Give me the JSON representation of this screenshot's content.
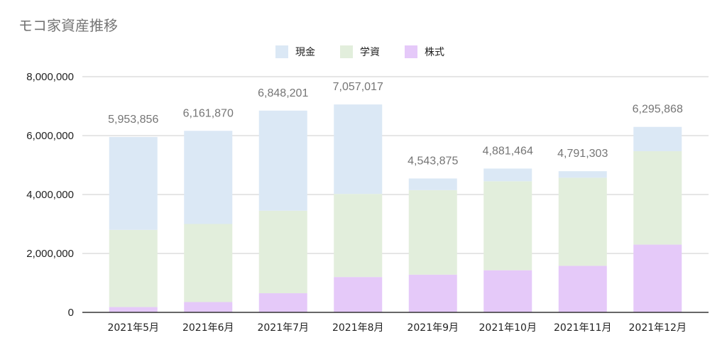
{
  "title": "モコ家資産推移",
  "chart_data": {
    "type": "bar",
    "stacked": true,
    "title": "モコ家資産推移",
    "xlabel": "",
    "ylabel": "",
    "ylim": [
      0,
      8000000
    ],
    "yticks": [
      0,
      2000000,
      4000000,
      6000000,
      8000000
    ],
    "ytick_labels": [
      "0",
      "2,000,000",
      "4,000,000",
      "6,000,000",
      "8,000,000"
    ],
    "grid": true,
    "legend_position": "top",
    "categories": [
      "2021年5月",
      "2021年6月",
      "2021年7月",
      "2021年8月",
      "2021年9月",
      "2021年10月",
      "2021年11月",
      "2021年12月"
    ],
    "series": [
      {
        "name": "株式",
        "color": "#e5c9f9",
        "values": [
          180000,
          350000,
          650000,
          1200000,
          1280000,
          1430000,
          1580000,
          2300000
        ]
      },
      {
        "name": "学資",
        "color": "#e2eedc",
        "values": [
          2620000,
          2650000,
          2800000,
          2820000,
          2870000,
          3020000,
          2990000,
          3170000
        ]
      },
      {
        "name": "現金",
        "color": "#dbe8f5",
        "values": [
          3153856,
          3161870,
          3398201,
          3037017,
          393875,
          431464,
          221303,
          825868
        ]
      }
    ],
    "totals": [
      5953856,
      6161870,
      6848201,
      7057017,
      4543875,
      4881464,
      4791303,
      6295868
    ],
    "total_labels": [
      "5,953,856",
      "6,161,870",
      "6,848,201",
      "7,057,017",
      "4,543,875",
      "4,881,464",
      "4,791,303",
      "6,295,868"
    ],
    "legend_order": [
      "現金",
      "学資",
      "株式"
    ]
  },
  "colors": {
    "title": "#757575",
    "axis_text": "#222222",
    "total_text": "#757575",
    "grid": "#cccccc",
    "baseline": "#333333"
  }
}
